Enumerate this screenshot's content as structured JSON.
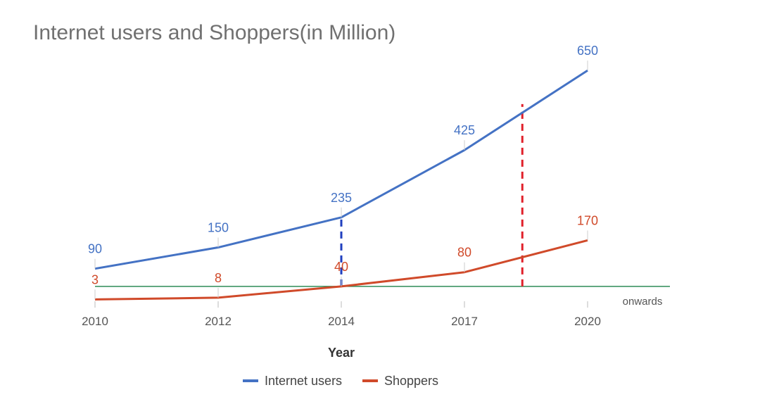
{
  "chart_data": {
    "type": "line",
    "title": "Internet users and Shoppers(in Million)",
    "xlabel": "Year",
    "ylabel": "",
    "categories": [
      "2010",
      "2012",
      "2014",
      "2017",
      "2020"
    ],
    "x_note": "onwards",
    "series": [
      {
        "name": "Internet users",
        "color": "#4472c4",
        "values": [
          90,
          150,
          235,
          425,
          650
        ]
      },
      {
        "name": "Shoppers",
        "color": "#d04a2a",
        "values": [
          3,
          8,
          40,
          80,
          170
        ]
      }
    ],
    "ylim": [
      -20,
      690
    ],
    "baseline": {
      "value": 40,
      "color": "#2e8b57"
    },
    "markers": [
      {
        "x_fraction_between_categories": 2.0,
        "color": "#1f3fbf",
        "style": "dashed",
        "from": 40,
        "to": 235
      },
      {
        "x_fraction_between_categories": 3.47,
        "color": "#e0202a",
        "style": "dashed",
        "from": 40,
        "to": 555
      }
    ],
    "legend": "bottom-center",
    "grid": false
  }
}
